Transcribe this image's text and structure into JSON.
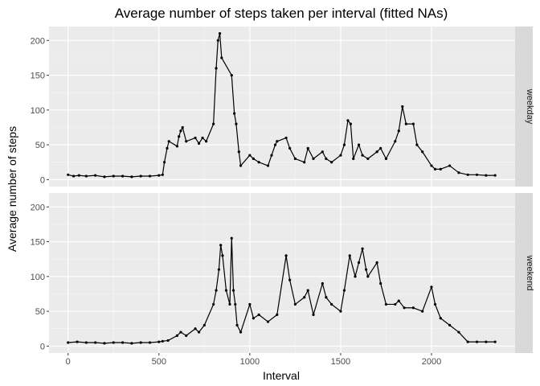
{
  "chart_data": {
    "type": "line",
    "title": "Average number of steps taken per interval (fitted NAs)",
    "xlabel": "Interval",
    "ylabel": "Average number of steps",
    "xlim": [
      -105,
      2460
    ],
    "ylim": [
      -10,
      220
    ],
    "xticks": [
      0,
      500,
      1000,
      1500,
      2000
    ],
    "xtick_labels": [
      "0",
      "500",
      "1000",
      "1500",
      "2000"
    ],
    "yticks": [
      0,
      50,
      100,
      150,
      200
    ],
    "ytick_labels": [
      "0",
      "50",
      "100",
      "150",
      "200"
    ],
    "grid": true,
    "legend": "none",
    "panels": [
      {
        "name": "weekday",
        "points": [
          [
            0,
            7
          ],
          [
            30,
            5
          ],
          [
            60,
            6
          ],
          [
            100,
            5
          ],
          [
            150,
            6
          ],
          [
            200,
            4
          ],
          [
            250,
            5
          ],
          [
            300,
            5
          ],
          [
            350,
            4
          ],
          [
            400,
            5
          ],
          [
            450,
            5
          ],
          [
            500,
            6
          ],
          [
            520,
            7
          ],
          [
            530,
            25
          ],
          [
            545,
            45
          ],
          [
            555,
            55
          ],
          [
            600,
            48
          ],
          [
            610,
            62
          ],
          [
            620,
            70
          ],
          [
            630,
            75
          ],
          [
            650,
            55
          ],
          [
            700,
            60
          ],
          [
            720,
            52
          ],
          [
            740,
            60
          ],
          [
            760,
            55
          ],
          [
            800,
            80
          ],
          [
            815,
            160
          ],
          [
            825,
            200
          ],
          [
            835,
            210
          ],
          [
            845,
            175
          ],
          [
            900,
            150
          ],
          [
            915,
            95
          ],
          [
            925,
            80
          ],
          [
            940,
            40
          ],
          [
            950,
            20
          ],
          [
            1000,
            35
          ],
          [
            1020,
            30
          ],
          [
            1050,
            25
          ],
          [
            1100,
            20
          ],
          [
            1120,
            35
          ],
          [
            1140,
            50
          ],
          [
            1150,
            55
          ],
          [
            1200,
            60
          ],
          [
            1220,
            45
          ],
          [
            1250,
            30
          ],
          [
            1300,
            25
          ],
          [
            1320,
            45
          ],
          [
            1350,
            30
          ],
          [
            1400,
            40
          ],
          [
            1420,
            30
          ],
          [
            1450,
            25
          ],
          [
            1500,
            35
          ],
          [
            1520,
            50
          ],
          [
            1540,
            85
          ],
          [
            1555,
            80
          ],
          [
            1570,
            30
          ],
          [
            1600,
            50
          ],
          [
            1620,
            35
          ],
          [
            1650,
            30
          ],
          [
            1700,
            40
          ],
          [
            1720,
            45
          ],
          [
            1750,
            30
          ],
          [
            1800,
            55
          ],
          [
            1820,
            70
          ],
          [
            1840,
            105
          ],
          [
            1860,
            80
          ],
          [
            1900,
            80
          ],
          [
            1920,
            50
          ],
          [
            1950,
            40
          ],
          [
            2000,
            20
          ],
          [
            2020,
            15
          ],
          [
            2050,
            15
          ],
          [
            2100,
            20
          ],
          [
            2150,
            10
          ],
          [
            2200,
            7
          ],
          [
            2250,
            7
          ],
          [
            2300,
            6
          ],
          [
            2350,
            6
          ]
        ]
      },
      {
        "name": "weekend",
        "points": [
          [
            0,
            5
          ],
          [
            50,
            6
          ],
          [
            100,
            5
          ],
          [
            150,
            5
          ],
          [
            200,
            4
          ],
          [
            250,
            5
          ],
          [
            300,
            5
          ],
          [
            350,
            4
          ],
          [
            400,
            5
          ],
          [
            450,
            5
          ],
          [
            500,
            6
          ],
          [
            520,
            7
          ],
          [
            550,
            8
          ],
          [
            600,
            15
          ],
          [
            620,
            20
          ],
          [
            650,
            15
          ],
          [
            700,
            25
          ],
          [
            720,
            20
          ],
          [
            750,
            30
          ],
          [
            800,
            60
          ],
          [
            815,
            80
          ],
          [
            830,
            110
          ],
          [
            840,
            145
          ],
          [
            850,
            130
          ],
          [
            870,
            80
          ],
          [
            890,
            60
          ],
          [
            900,
            155
          ],
          [
            910,
            80
          ],
          [
            920,
            60
          ],
          [
            930,
            30
          ],
          [
            950,
            20
          ],
          [
            1000,
            60
          ],
          [
            1020,
            40
          ],
          [
            1050,
            45
          ],
          [
            1100,
            35
          ],
          [
            1150,
            45
          ],
          [
            1200,
            130
          ],
          [
            1220,
            95
          ],
          [
            1250,
            60
          ],
          [
            1300,
            70
          ],
          [
            1320,
            80
          ],
          [
            1350,
            45
          ],
          [
            1400,
            90
          ],
          [
            1420,
            70
          ],
          [
            1450,
            60
          ],
          [
            1500,
            50
          ],
          [
            1520,
            80
          ],
          [
            1550,
            130
          ],
          [
            1580,
            100
          ],
          [
            1600,
            120
          ],
          [
            1620,
            140
          ],
          [
            1640,
            110
          ],
          [
            1650,
            100
          ],
          [
            1700,
            120
          ],
          [
            1720,
            90
          ],
          [
            1750,
            60
          ],
          [
            1800,
            60
          ],
          [
            1820,
            65
          ],
          [
            1850,
            55
          ],
          [
            1900,
            55
          ],
          [
            1950,
            50
          ],
          [
            2000,
            85
          ],
          [
            2020,
            60
          ],
          [
            2050,
            40
          ],
          [
            2100,
            30
          ],
          [
            2150,
            20
          ],
          [
            2200,
            6
          ],
          [
            2250,
            6
          ],
          [
            2300,
            6
          ],
          [
            2350,
            6
          ]
        ]
      }
    ]
  }
}
